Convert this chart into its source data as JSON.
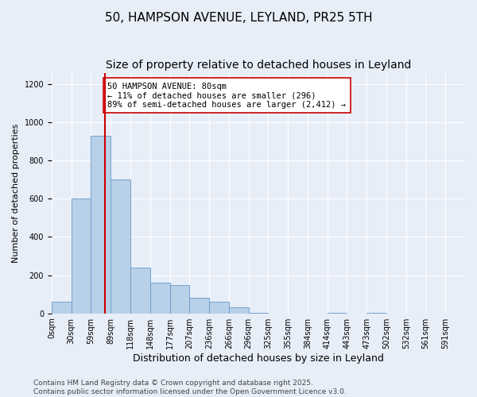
{
  "title": "50, HAMPSON AVENUE, LEYLAND, PR25 5TH",
  "subtitle": "Size of property relative to detached houses in Leyland",
  "xlabel": "Distribution of detached houses by size in Leyland",
  "ylabel": "Number of detached properties",
  "bin_labels": [
    "0sqm",
    "30sqm",
    "59sqm",
    "89sqm",
    "118sqm",
    "148sqm",
    "177sqm",
    "207sqm",
    "236sqm",
    "266sqm",
    "296sqm",
    "325sqm",
    "355sqm",
    "384sqm",
    "414sqm",
    "443sqm",
    "473sqm",
    "502sqm",
    "532sqm",
    "561sqm",
    "591sqm"
  ],
  "bar_heights": [
    60,
    600,
    930,
    700,
    240,
    160,
    150,
    80,
    60,
    30,
    5,
    0,
    0,
    0,
    5,
    0,
    5,
    0,
    0,
    0,
    0
  ],
  "bar_color": "#b8d0e8",
  "bar_edgecolor": "#6699cc",
  "property_size_bin": 2,
  "property_line_color": "#cc0000",
  "annotation_text": "50 HAMPSON AVENUE: 80sqm\n← 11% of detached houses are smaller (296)\n89% of semi-detached houses are larger (2,412) →",
  "annotation_box_color": "#ffffff",
  "annotation_box_edgecolor": "#cc0000",
  "ylim": [
    0,
    1260
  ],
  "yticks": [
    0,
    200,
    400,
    600,
    800,
    1000,
    1200
  ],
  "footer_line1": "Contains HM Land Registry data © Crown copyright and database right 2025.",
  "footer_line2": "Contains public sector information licensed under the Open Government Licence v3.0.",
  "background_color": "#e8eef8",
  "grid_color": "#ffffff",
  "title_fontsize": 11,
  "subtitle_fontsize": 10,
  "xlabel_fontsize": 9,
  "ylabel_fontsize": 8,
  "tick_fontsize": 7,
  "annotation_fontsize": 7.5,
  "footer_fontsize": 6.5
}
